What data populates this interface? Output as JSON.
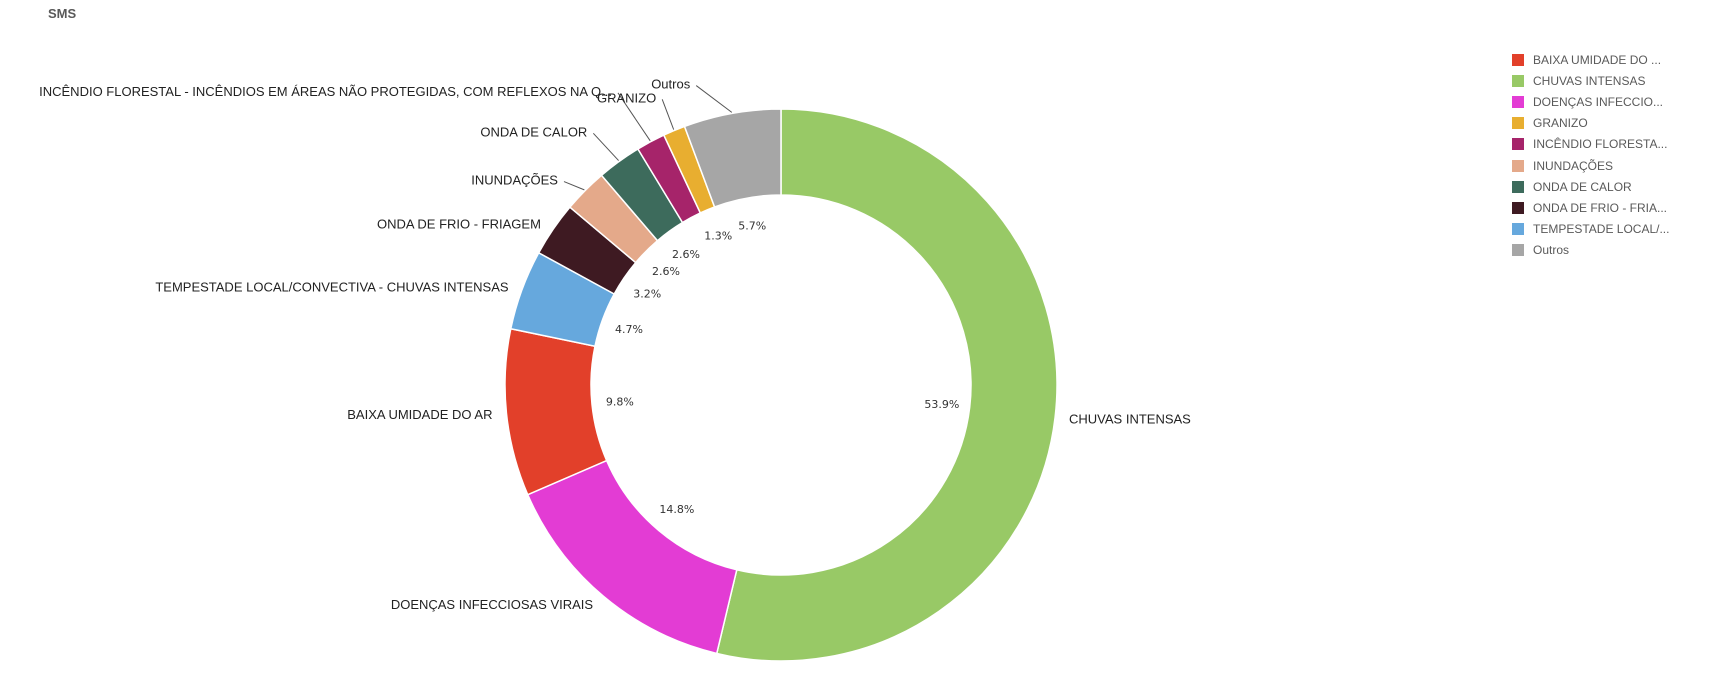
{
  "header": {
    "title": "SMS"
  },
  "chart_data": {
    "type": "pie",
    "donut": true,
    "title": "SMS",
    "legend_position": "right",
    "slices": [
      {
        "name": "CHUVAS INTENSAS",
        "label": "CHUVAS INTENSAS",
        "value": 53.9,
        "display": "53.9%",
        "color": "#98c966"
      },
      {
        "name": "DOENÇAS INFECCIOSAS VIRAIS",
        "label": "DOENÇAS INFECCIOSAS VIRAIS",
        "value": 14.8,
        "display": "14.8%",
        "color": "#e33cd4"
      },
      {
        "name": "BAIXA UMIDADE DO AR",
        "label": "BAIXA UMIDADE DO AR",
        "value": 9.8,
        "display": "9.8%",
        "color": "#e2402a"
      },
      {
        "name": "TEMPESTADE LOCAL/CONVECTIVA - CHUVAS INTENSAS",
        "label": "TEMPESTADE LOCAL/CONVECTIVA - CHUVAS INTENSAS",
        "value": 4.7,
        "display": "4.7%",
        "color": "#66a8dd"
      },
      {
        "name": "ONDA DE FRIO - FRIAGEM",
        "label": "ONDA DE FRIO - FRIAGEM",
        "value": 3.2,
        "display": "3.2%",
        "color": "#3e1a22"
      },
      {
        "name": "INUNDAÇÕES",
        "label": "INUNDAÇÕES",
        "value": 2.6,
        "display": "2.6%",
        "color": "#e4a98a"
      },
      {
        "name": "ONDA DE CALOR",
        "label": "ONDA DE CALOR",
        "value": 2.6,
        "display": "2.6%",
        "color": "#3d6b5c"
      },
      {
        "name": "INCÊNDIO FLORESTAL - INCÊNDIOS EM ÁREAS NÃO PROTEGIDAS, COM REFLEXOS NA QUALIDADE DO AR",
        "label": "INCÊNDIO FLORESTAL - INCÊNDIOS EM ÁREAS NÃO PROTEGIDAS, COM REFLEXOS NA Q...",
        "value": 1.7,
        "display": "",
        "color": "#a6246a"
      },
      {
        "name": "GRANIZO",
        "label": "GRANIZO",
        "value": 1.3,
        "display": "1.3%",
        "color": "#e8ae30"
      },
      {
        "name": "Outros",
        "label": "Outros",
        "value": 5.7,
        "display": "5.7%",
        "color": "#a6a6a6"
      }
    ]
  },
  "legend": {
    "items": [
      {
        "label": "BAIXA UMIDADE DO ...",
        "color": "#e2402a"
      },
      {
        "label": "CHUVAS INTENSAS",
        "color": "#98c966"
      },
      {
        "label": "DOENÇAS INFECCIO...",
        "color": "#e33cd4"
      },
      {
        "label": "GRANIZO",
        "color": "#e8ae30"
      },
      {
        "label": "INCÊNDIO FLORESTA...",
        "color": "#a6246a"
      },
      {
        "label": "INUNDAÇÕES",
        "color": "#e4a98a"
      },
      {
        "label": "ONDA DE CALOR",
        "color": "#3d6b5c"
      },
      {
        "label": "ONDA DE FRIO - FRIA...",
        "color": "#3e1a22"
      },
      {
        "label": "TEMPESTADE LOCAL/...",
        "color": "#66a8dd"
      },
      {
        "label": "Outros",
        "color": "#a6a6a6"
      }
    ]
  }
}
